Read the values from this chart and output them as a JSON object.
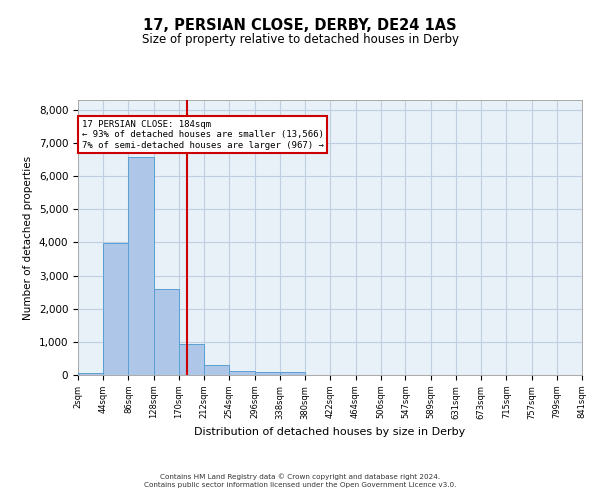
{
  "title": "17, PERSIAN CLOSE, DERBY, DE24 1AS",
  "subtitle": "Size of property relative to detached houses in Derby",
  "xlabel": "Distribution of detached houses by size in Derby",
  "ylabel": "Number of detached properties",
  "property_label": "17 PERSIAN CLOSE: 184sqm",
  "pct_smaller": 93,
  "count_smaller": 13566,
  "pct_larger": 7,
  "count_larger": 967,
  "bar_left_edges": [
    2,
    44,
    86,
    128,
    170,
    212,
    254,
    296,
    338,
    380,
    422,
    464,
    506,
    547,
    589,
    631,
    673,
    715,
    757,
    799
  ],
  "bar_heights": [
    70,
    3980,
    6590,
    2600,
    940,
    310,
    120,
    95,
    95,
    0,
    0,
    0,
    0,
    0,
    0,
    0,
    0,
    0,
    0,
    0
  ],
  "bin_width": 42,
  "bar_color": "#aec6e8",
  "bar_edge_color": "#5a9fd4",
  "vline_x": 184,
  "vline_color": "#cc0000",
  "annotation_box_color": "#cc0000",
  "plot_bg_color": "#e8f0f8",
  "background_color": "#ffffff",
  "grid_color": "#c0cfe0",
  "tick_labels": [
    "2sqm",
    "44sqm",
    "86sqm",
    "128sqm",
    "170sqm",
    "212sqm",
    "254sqm",
    "296sqm",
    "338sqm",
    "380sqm",
    "422sqm",
    "464sqm",
    "506sqm",
    "547sqm",
    "589sqm",
    "631sqm",
    "673sqm",
    "715sqm",
    "757sqm",
    "799sqm",
    "841sqm"
  ],
  "ylim": [
    0,
    8300
  ],
  "yticks": [
    0,
    1000,
    2000,
    3000,
    4000,
    5000,
    6000,
    7000,
    8000
  ],
  "footer_line1": "Contains HM Land Registry data © Crown copyright and database right 2024.",
  "footer_line2": "Contains public sector information licensed under the Open Government Licence v3.0."
}
